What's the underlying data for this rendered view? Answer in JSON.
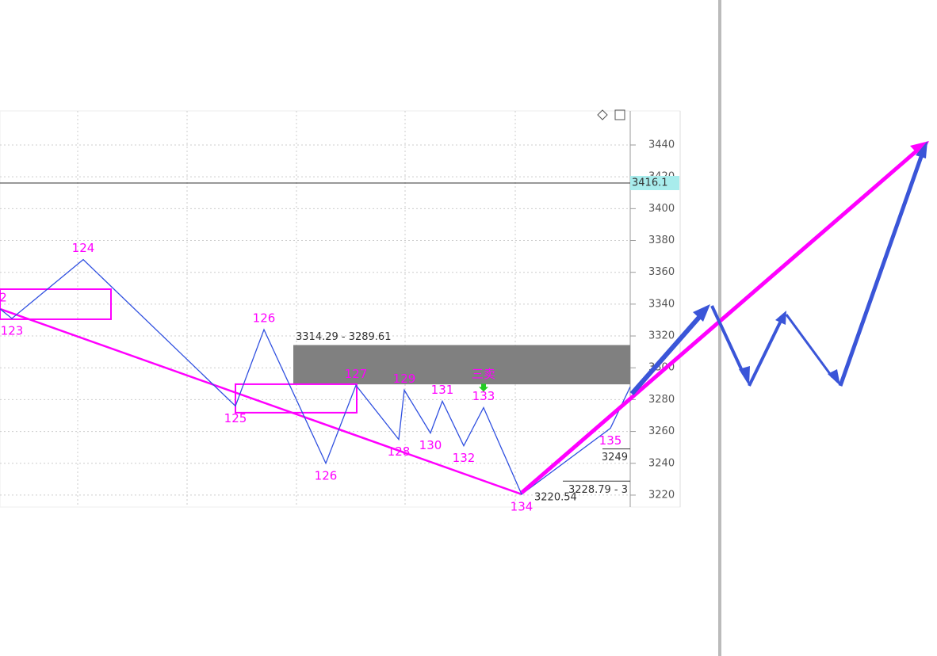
{
  "chart_data": {
    "type": "line",
    "xlim": [
      0,
      159
    ],
    "ylim": [
      3212.5,
      3461.4
    ],
    "yticks": [
      3220,
      3240,
      3260,
      3280,
      3300,
      3320,
      3340,
      3360,
      3380,
      3400,
      3420,
      3440
    ],
    "grid": true,
    "color": "#3050e0",
    "x": [
      0,
      3,
      21,
      59.4,
      66.6,
      82.2,
      89.8,
      100.6,
      102,
      108.6,
      111.6,
      117,
      122,
      131.6,
      154,
      159
    ],
    "values": [
      3337,
      3331,
      3368,
      3276,
      3324,
      3240,
      3289,
      3255,
      3286,
      3259,
      3279,
      3251,
      3275,
      3220.54,
      3262,
      3288
    ],
    "point_labels": [
      "2",
      "123",
      "124",
      "125",
      "126",
      "126",
      "127",
      "128",
      "129",
      "130",
      "131",
      "132",
      "133",
      "134",
      "135",
      null
    ],
    "trend_line": {
      "color": "#ff00ff",
      "x": [
        0,
        131.6
      ],
      "values": [
        3337,
        3220.54
      ]
    },
    "boxes": [
      {
        "x": [
          0,
          28
        ],
        "values": [
          3330.5,
          3349.4
        ]
      },
      {
        "x": [
          59.4,
          90
        ],
        "values": [
          3271.8,
          3289.7
        ]
      }
    ],
    "zone": {
      "x": [
        74,
        159
      ],
      "values": [
        3289.61,
        3314.29
      ],
      "label": "3314.29 - 3289.61",
      "color": "#808080"
    },
    "level": {
      "value": 3416.1,
      "color": "#333333"
    },
    "short_levels": [
      {
        "x": [
          152,
          159
        ],
        "value": 3249,
        "label": "3249"
      },
      {
        "x": [
          142,
          159
        ],
        "value": 3228.79,
        "label": "3228.79 - 3"
      }
    ],
    "low_label": "3220.54",
    "signal": {
      "text": "三卖",
      "x": 122,
      "value": 3285
    }
  }
}
